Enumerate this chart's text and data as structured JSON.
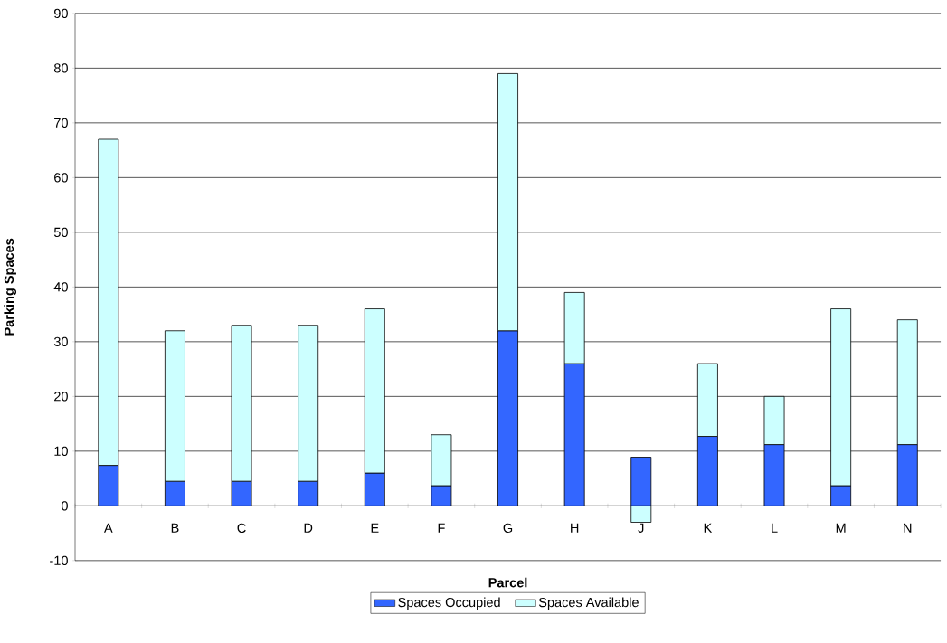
{
  "chart_data": {
    "type": "bar",
    "stacked": true,
    "xlabel": "Parcel",
    "ylabel": "Parking Spaces",
    "categories": [
      "A",
      "B",
      "C",
      "D",
      "E",
      "F",
      "G",
      "H",
      "J",
      "K",
      "L",
      "M",
      "N"
    ],
    "series": [
      {
        "name": "Spaces Occupied",
        "color": "#3366ff",
        "values": [
          7.4,
          4.5,
          4.5,
          4.5,
          6,
          3.7,
          32,
          26,
          8.9,
          12.7,
          11.2,
          3.7,
          11.2
        ]
      },
      {
        "name": "Spaces Available",
        "color": "#ccffff",
        "values": [
          59.6,
          27.5,
          28.5,
          28.5,
          30,
          9.3,
          47,
          13,
          -3,
          13.3,
          8.8,
          32.3,
          22.8
        ]
      }
    ],
    "ylim": [
      -10,
      90
    ],
    "yticks": [
      -10,
      0,
      10,
      20,
      30,
      40,
      50,
      60,
      70,
      80,
      90
    ],
    "grid": "y",
    "legend": "bottom"
  }
}
